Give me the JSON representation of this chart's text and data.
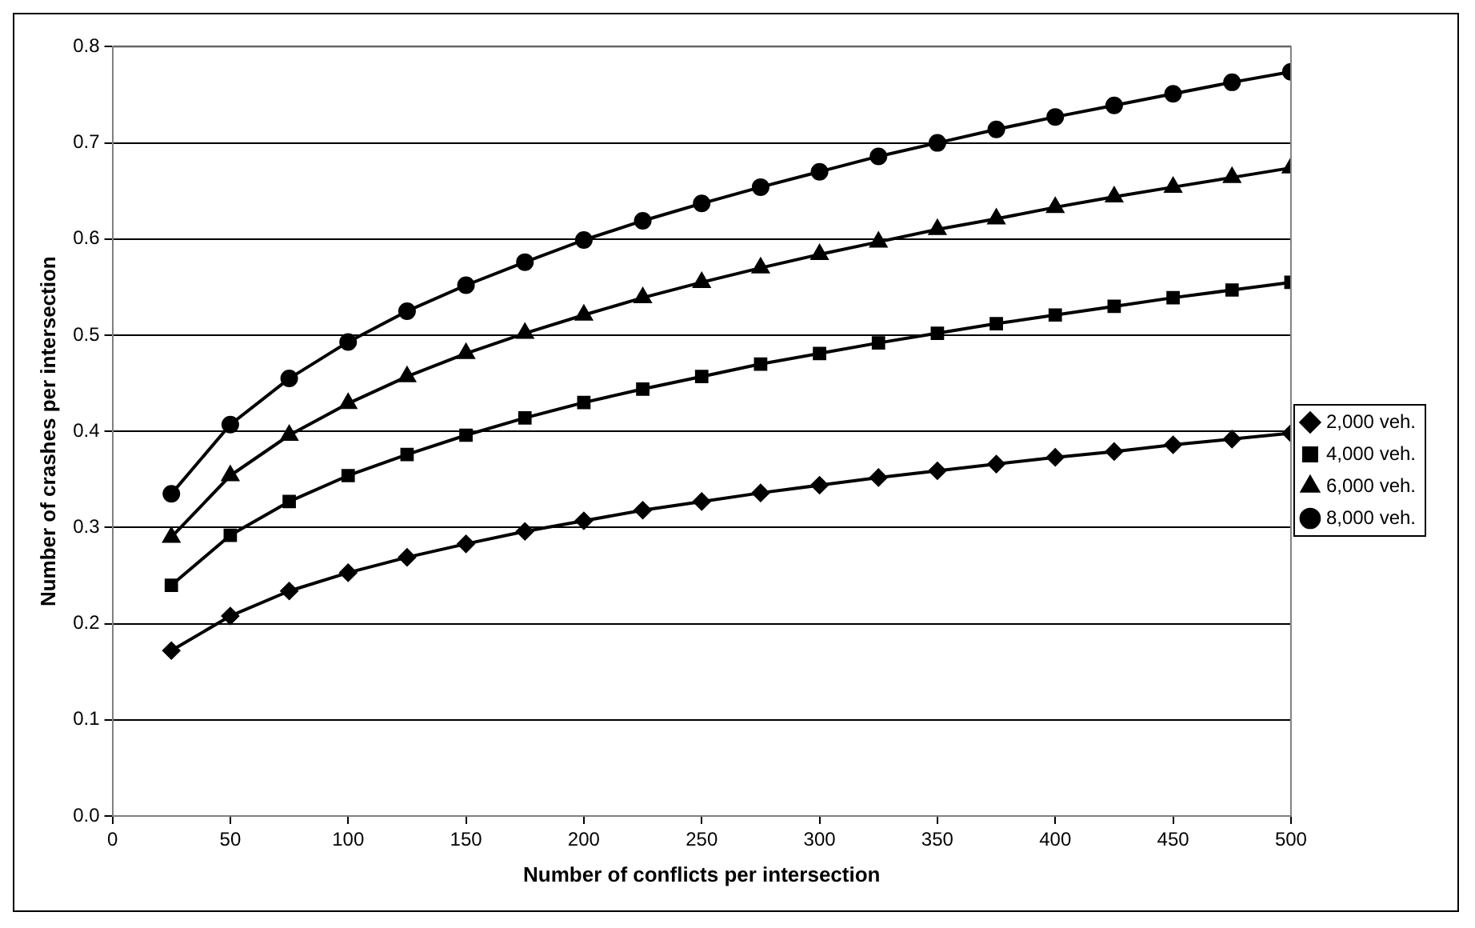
{
  "chart_data": {
    "type": "line",
    "xlabel": "Number of conflicts per intersection",
    "ylabel": "Number of crashes per intersection",
    "x": [
      25,
      50,
      75,
      100,
      125,
      150,
      175,
      200,
      225,
      250,
      275,
      300,
      325,
      350,
      375,
      400,
      425,
      450,
      475,
      500
    ],
    "xlim": [
      0,
      500
    ],
    "xticks": [
      0,
      50,
      100,
      150,
      200,
      250,
      300,
      350,
      400,
      450,
      500
    ],
    "ylim": [
      0,
      0.8
    ],
    "yticks": [
      {
        "value": 0,
        "label": "0.0"
      },
      {
        "value": 0.1,
        "label": "0.1"
      },
      {
        "value": 0.2,
        "label": "0.2"
      },
      {
        "value": 0.3,
        "label": "0.3"
      },
      {
        "value": 0.4,
        "label": "0.4"
      },
      {
        "value": 0.5,
        "label": "0.5"
      },
      {
        "value": 0.6,
        "label": "0.6"
      },
      {
        "value": 0.7,
        "label": "0.7"
      },
      {
        "value": 0.8,
        "label": "0.8"
      }
    ],
    "grid": "y",
    "legend": "right",
    "line_style": "solid",
    "series": [
      {
        "name": "2,000 veh.",
        "color": "#000000",
        "marker": "diamond",
        "values": [
          0.172,
          0.208,
          0.234,
          0.253,
          0.269,
          0.283,
          0.296,
          0.307,
          0.318,
          0.327,
          0.336,
          0.344,
          0.352,
          0.359,
          0.366,
          0.373,
          0.379,
          0.386,
          0.392,
          0.398
        ]
      },
      {
        "name": "4,000 veh.",
        "color": "#000000",
        "marker": "square",
        "values": [
          0.24,
          0.292,
          0.327,
          0.354,
          0.376,
          0.396,
          0.414,
          0.43,
          0.444,
          0.457,
          0.47,
          0.481,
          0.492,
          0.502,
          0.512,
          0.521,
          0.53,
          0.539,
          0.547,
          0.555
        ]
      },
      {
        "name": "6,000 veh.",
        "color": "#000000",
        "marker": "triangle",
        "values": [
          0.29,
          0.354,
          0.396,
          0.429,
          0.457,
          0.481,
          0.502,
          0.521,
          0.539,
          0.555,
          0.57,
          0.584,
          0.597,
          0.61,
          0.621,
          0.633,
          0.644,
          0.654,
          0.664,
          0.674
        ]
      },
      {
        "name": "8,000 veh.",
        "color": "#000000",
        "marker": "circle",
        "values": [
          0.335,
          0.407,
          0.455,
          0.493,
          0.525,
          0.552,
          0.576,
          0.599,
          0.619,
          0.637,
          0.654,
          0.67,
          0.686,
          0.7,
          0.714,
          0.727,
          0.739,
          0.751,
          0.763,
          0.774
        ]
      }
    ]
  }
}
